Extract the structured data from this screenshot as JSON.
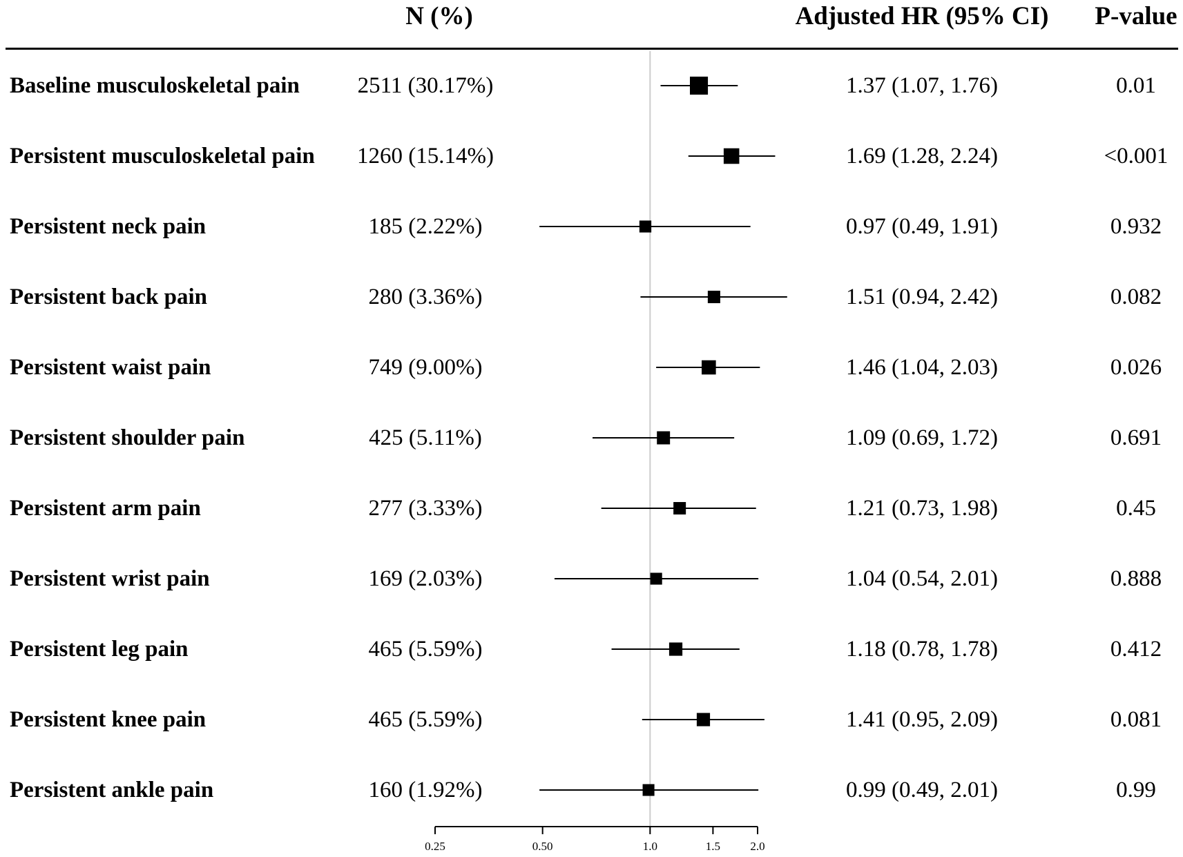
{
  "chart_data": {
    "type": "forest",
    "columns": {
      "n": "N (%)",
      "hr": "Adjusted HR (95% CI)",
      "p": "P-value"
    },
    "reference_line": 1.0,
    "x_scale": "log",
    "xlim": [
      0.25,
      2.0
    ],
    "ticks": [
      {
        "value": 0.25,
        "label": "0.25"
      },
      {
        "value": 0.5,
        "label": "0.50"
      },
      {
        "value": 1.0,
        "label": "1.0"
      },
      {
        "value": 1.5,
        "label": "1.5"
      },
      {
        "value": 2.0,
        "label": "2.0"
      }
    ],
    "rows": [
      {
        "label": "Baseline musculoskeletal pain",
        "n": "2511 (30.17%)",
        "hr": 1.37,
        "lo": 1.07,
        "hi": 1.76,
        "hr_text": "1.37 (1.07, 1.76)",
        "p": "0.01",
        "weight": 30.17
      },
      {
        "label": "Persistent musculoskeletal pain",
        "n": "1260 (15.14%)",
        "hr": 1.69,
        "lo": 1.28,
        "hi": 2.24,
        "hr_text": "1.69 (1.28, 2.24)",
        "p": "<0.001",
        "weight": 15.14
      },
      {
        "label": "Persistent neck pain",
        "n": "185 (2.22%)",
        "hr": 0.97,
        "lo": 0.49,
        "hi": 1.91,
        "hr_text": "0.97 (0.49, 1.91)",
        "p": "0.932",
        "weight": 2.22
      },
      {
        "label": "Persistent back pain",
        "n": "280 (3.36%)",
        "hr": 1.51,
        "lo": 0.94,
        "hi": 2.42,
        "hr_text": "1.51 (0.94, 2.42)",
        "p": "0.082",
        "weight": 3.36
      },
      {
        "label": "Persistent waist pain",
        "n": "749 (9.00%)",
        "hr": 1.46,
        "lo": 1.04,
        "hi": 2.03,
        "hr_text": "1.46 (1.04, 2.03)",
        "p": "0.026",
        "weight": 9.0
      },
      {
        "label": "Persistent shoulder pain",
        "n": "425 (5.11%)",
        "hr": 1.09,
        "lo": 0.69,
        "hi": 1.72,
        "hr_text": "1.09 (0.69, 1.72)",
        "p": "0.691",
        "weight": 5.11
      },
      {
        "label": "Persistent arm pain",
        "n": "277 (3.33%)",
        "hr": 1.21,
        "lo": 0.73,
        "hi": 1.98,
        "hr_text": "1.21 (0.73, 1.98)",
        "p": "0.45",
        "weight": 3.33
      },
      {
        "label": "Persistent wrist pain",
        "n": "169 (2.03%)",
        "hr": 1.04,
        "lo": 0.54,
        "hi": 2.01,
        "hr_text": "1.04 (0.54, 2.01)",
        "p": "0.888",
        "weight": 2.03
      },
      {
        "label": "Persistent leg pain",
        "n": "465 (5.59%)",
        "hr": 1.18,
        "lo": 0.78,
        "hi": 1.78,
        "hr_text": "1.18 (0.78, 1.78)",
        "p": "0.412",
        "weight": 5.59
      },
      {
        "label": "Persistent knee pain",
        "n": "465 (5.59%)",
        "hr": 1.41,
        "lo": 0.95,
        "hi": 2.09,
        "hr_text": "1.41 (0.95, 2.09)",
        "p": "0.081",
        "weight": 5.59
      },
      {
        "label": "Persistent ankle pain",
        "n": "160 (1.92%)",
        "hr": 0.99,
        "lo": 0.49,
        "hi": 2.01,
        "hr_text": "0.99 (0.49, 2.01)",
        "p": "0.99",
        "weight": 1.92
      }
    ]
  }
}
